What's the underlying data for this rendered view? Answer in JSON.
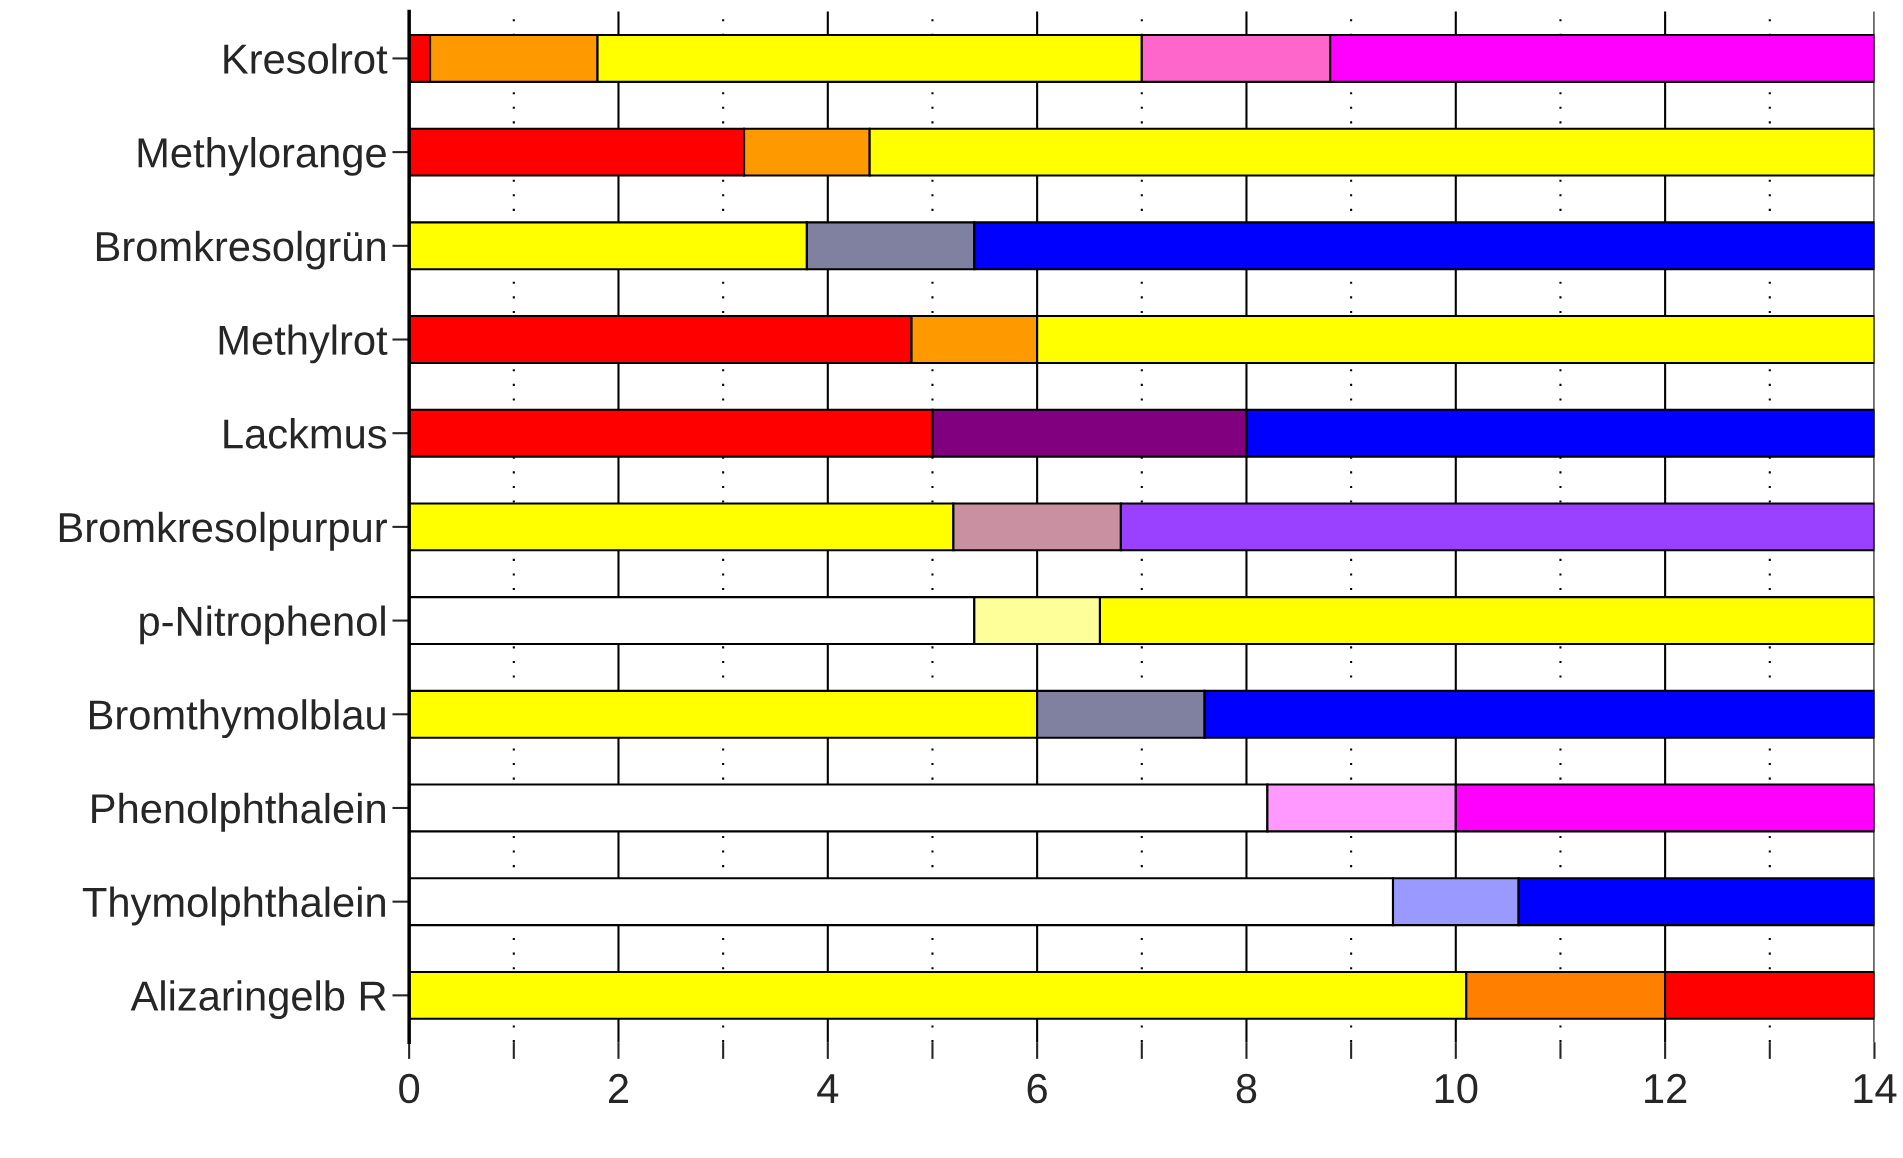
{
  "chart_data": {
    "type": "bar",
    "orientation": "horizontal",
    "stacked": true,
    "categories": [
      "Kresolrot",
      "Methylorange",
      "Bromkresolgrün",
      "Methylrot",
      "Lackmus",
      "Bromkresolpurpur",
      "p-Nitrophenol",
      "Bromthymolblau",
      "Phenolphthalein",
      "Thymolphthalein",
      "Alizaringelb R"
    ],
    "series": [
      {
        "values": [
          0.2,
          3.2,
          3.8,
          4.8,
          5.0,
          5.2,
          5.4,
          6.0,
          8.2,
          9.4,
          10.1
        ],
        "colors": [
          "#ff0000",
          "#ff0000",
          "#ffff00",
          "#ff0000",
          "#ff0000",
          "#ffff00",
          "#ffffff",
          "#ffff00",
          "#ffffff",
          "#ffffff",
          "#ffff00"
        ]
      },
      {
        "values": [
          1.6,
          1.2,
          1.6,
          1.2,
          3.0,
          1.6,
          1.2,
          1.6,
          1.8,
          1.2,
          1.9
        ],
        "colors": [
          "#ff9900",
          "#ff9900",
          "#8080a0",
          "#ff9900",
          "#800080",
          "#c890a0",
          "#ffff99",
          "#8080a0",
          "#ff99ff",
          "#9999ff",
          "#ff8000"
        ]
      },
      {
        "values": [
          5.2,
          9.6,
          8.6,
          8.0,
          6.0,
          7.2,
          7.4,
          6.4,
          4.0,
          3.4,
          2.0
        ],
        "colors": [
          "#ffff00",
          "#ffff00",
          "#0000ff",
          "#ffff00",
          "#0000ff",
          "#9a40ff",
          "#ffff00",
          "#0000ff",
          "#ff00ff",
          "#0000ff",
          "#ff0000"
        ]
      },
      {
        "values": [
          1.8,
          null,
          null,
          null,
          null,
          null,
          null,
          null,
          null,
          null,
          null
        ],
        "colors": [
          "#ff66cc",
          null,
          null,
          null,
          null,
          null,
          null,
          null,
          null,
          null,
          null
        ]
      },
      {
        "values": [
          5.2,
          null,
          null,
          null,
          null,
          null,
          null,
          null,
          null,
          null,
          null
        ],
        "colors": [
          "#ff00ff",
          null,
          null,
          null,
          null,
          null,
          null,
          null,
          null,
          null,
          null
        ]
      }
    ],
    "xlim": [
      0,
      14
    ],
    "xticks": [
      0,
      {
        "value": 1,
        "label": null
      },
      2,
      {
        "value": 3,
        "label": null
      },
      4,
      {
        "value": 5,
        "label": null
      },
      6,
      {
        "value": 7,
        "label": null
      },
      8,
      {
        "value": 9,
        "label": null
      },
      10,
      {
        "value": 11,
        "label": null
      },
      12,
      {
        "value": 13,
        "label": null
      },
      14
    ],
    "grid": "x",
    "legend": false
  }
}
